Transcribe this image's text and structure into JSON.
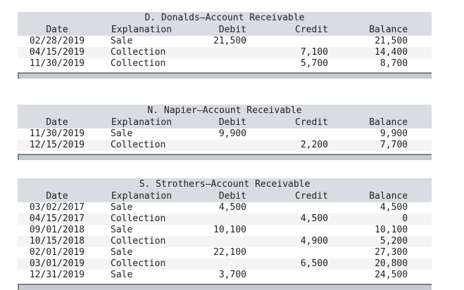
{
  "page": {
    "background": "#ffffff",
    "text_color": "#202024",
    "header_band_color": "#dadce4",
    "alt_row_color": "#f4f4f6",
    "scrollbar_fill_color": "#c6cad3",
    "scrollbar_edge_color": "#7e8187"
  },
  "columns": [
    "Date",
    "Explanation",
    "Debit",
    "Credit",
    "Balance"
  ],
  "tables": [
    {
      "title": "D. Donalds—Account Receivable",
      "rows": [
        {
          "date": "02/28/2019",
          "explanation": "Sale",
          "debit": "21,500",
          "credit": "",
          "balance": "21,500"
        },
        {
          "date": "04/15/2019",
          "explanation": "Collection",
          "debit": "",
          "credit": "7,100",
          "balance": "14,400"
        },
        {
          "date": "11/30/2019",
          "explanation": "Collection",
          "debit": "",
          "credit": "5,700",
          "balance": "8,700"
        }
      ]
    },
    {
      "title": "N. Napier—Account Receivable",
      "rows": [
        {
          "date": "11/30/2019",
          "explanation": "Sale",
          "debit": "9,900",
          "credit": "",
          "balance": "9,900"
        },
        {
          "date": "12/15/2019",
          "explanation": "Collection",
          "debit": "",
          "credit": "2,200",
          "balance": "7,700"
        }
      ]
    },
    {
      "title": "S. Strothers—Account Receivable",
      "rows": [
        {
          "date": "03/02/2017",
          "explanation": "Sale",
          "debit": "4,500",
          "credit": "",
          "balance": "4,500"
        },
        {
          "date": "04/15/2017",
          "explanation": "Collection",
          "debit": "",
          "credit": "4,500",
          "balance": "0"
        },
        {
          "date": "09/01/2018",
          "explanation": "Sale",
          "debit": "10,100",
          "credit": "",
          "balance": "10,100"
        },
        {
          "date": "10/15/2018",
          "explanation": "Collection",
          "debit": "",
          "credit": "4,900",
          "balance": "5,200"
        },
        {
          "date": "02/01/2019",
          "explanation": "Sale",
          "debit": "22,100",
          "credit": "",
          "balance": "27,300"
        },
        {
          "date": "03/01/2019",
          "explanation": "Collection",
          "debit": "",
          "credit": "6,500",
          "balance": "20,800"
        },
        {
          "date": "12/31/2019",
          "explanation": "Sale",
          "debit": "3,700",
          "credit": "",
          "balance": "24,500"
        }
      ]
    }
  ]
}
